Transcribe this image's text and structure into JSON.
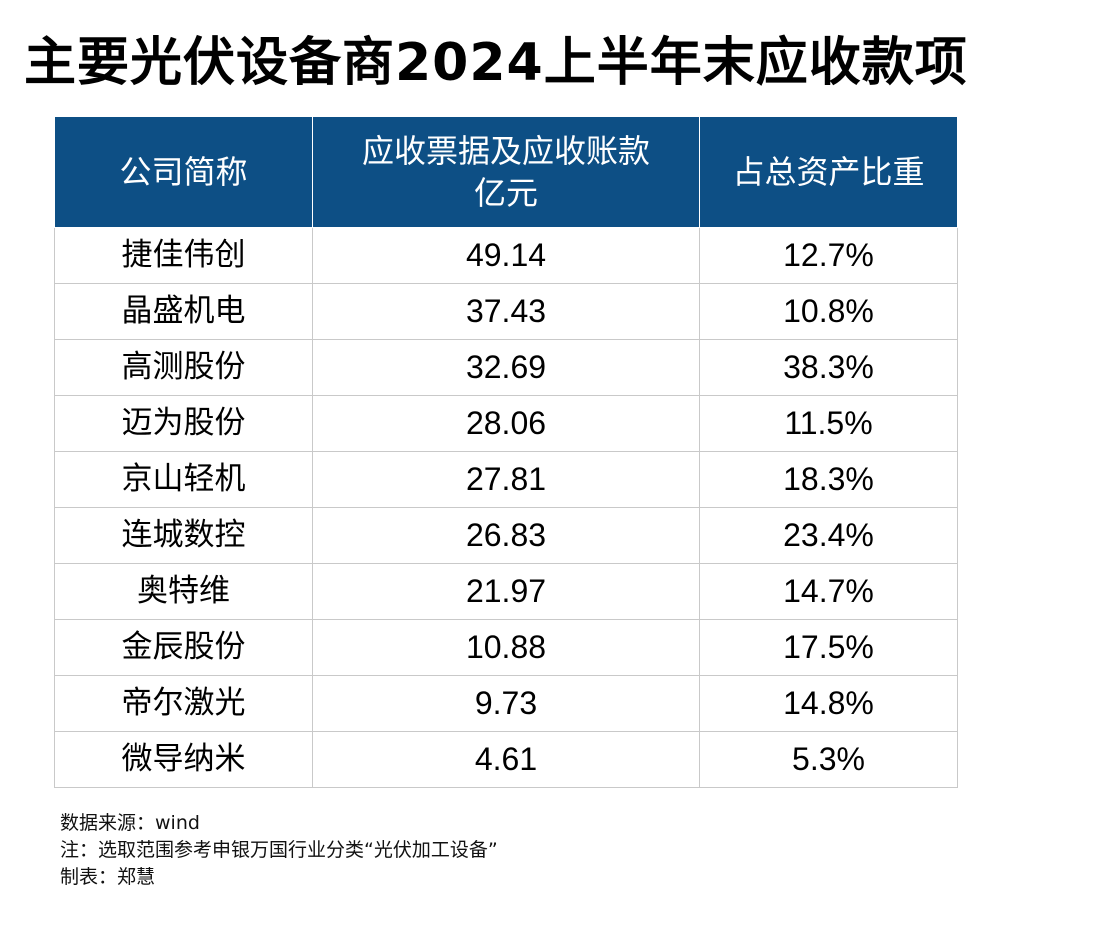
{
  "title": "主要光伏设备商2024上半年末应收款项",
  "chart_data": {
    "type": "table",
    "columns": [
      {
        "lines": [
          "公司简称"
        ]
      },
      {
        "lines": [
          "应收票据及应收账款",
          "亿元"
        ]
      },
      {
        "lines": [
          "占总资产比重"
        ]
      }
    ],
    "rows": [
      {
        "company": "捷佳伟创",
        "receivables": "49.14",
        "ratio": "12.7%"
      },
      {
        "company": "晶盛机电",
        "receivables": "37.43",
        "ratio": "10.8%"
      },
      {
        "company": "高测股份",
        "receivables": "32.69",
        "ratio": "38.3%"
      },
      {
        "company": "迈为股份",
        "receivables": "28.06",
        "ratio": "11.5%"
      },
      {
        "company": "京山轻机",
        "receivables": "27.81",
        "ratio": "18.3%"
      },
      {
        "company": "连城数控",
        "receivables": "26.83",
        "ratio": "23.4%"
      },
      {
        "company": "奥特维",
        "receivables": "21.97",
        "ratio": "14.7%"
      },
      {
        "company": "金辰股份",
        "receivables": "10.88",
        "ratio": "17.5%"
      },
      {
        "company": "帝尔激光",
        "receivables": "9.73",
        "ratio": "14.8%"
      },
      {
        "company": "微导纳米",
        "receivables": "4.61",
        "ratio": "5.3%"
      }
    ],
    "header_color": "#0d4f85"
  },
  "notes": [
    "数据来源：wind",
    "注：选取范围参考申银万国行业分类“光伏加工设备”",
    "制表：郑慧"
  ]
}
